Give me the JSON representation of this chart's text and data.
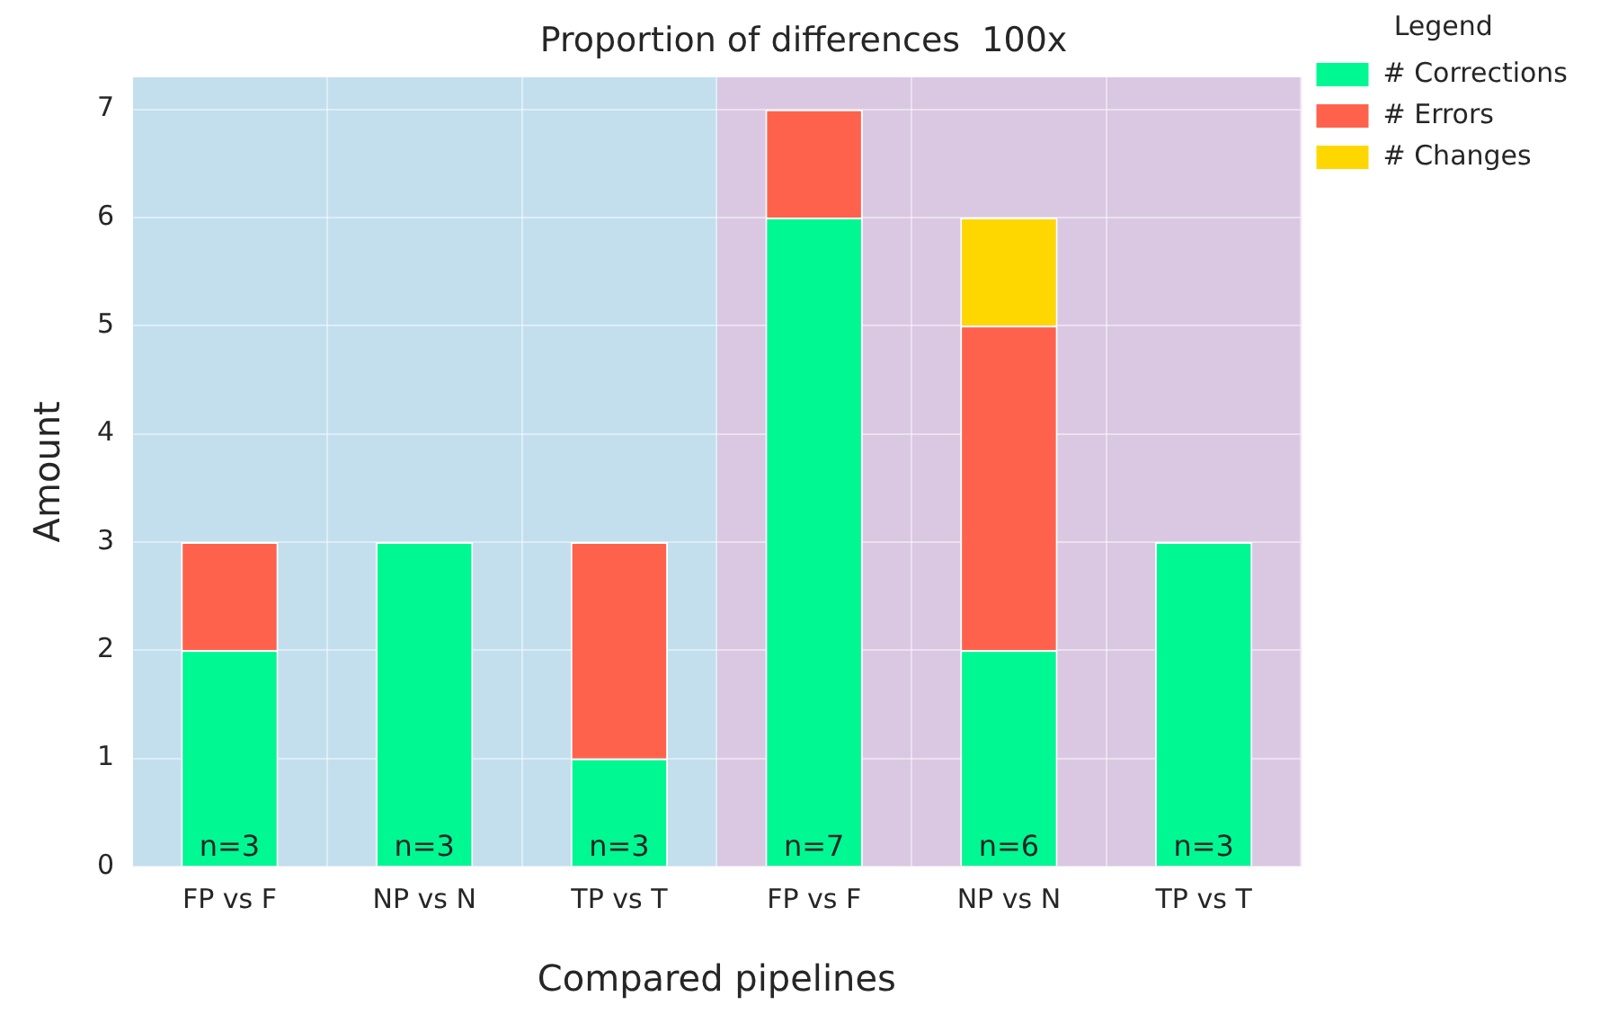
{
  "chart_data": {
    "type": "bar",
    "title": "Proportion of differences  100x",
    "xlabel": "Compared pipelines",
    "ylabel": "Amount",
    "legend_title": "Legend",
    "categories": [
      "FP vs F",
      "NP vs N",
      "TP vs T",
      "FP vs F",
      "NP vs N",
      "TP vs T"
    ],
    "series": [
      {
        "name": "# Corrections",
        "color": "#00f892",
        "values": [
          2,
          3,
          1,
          6,
          2,
          3
        ]
      },
      {
        "name": "# Errors",
        "color": "#ff624c",
        "values": [
          1,
          0,
          2,
          1,
          3,
          0
        ]
      },
      {
        "name": "# Changes",
        "color": "#ffd700",
        "values": [
          0,
          0,
          0,
          0,
          1,
          0
        ]
      }
    ],
    "stacked": true,
    "totals": [
      "n=3",
      "n=3",
      "n=3",
      "n=7",
      "n=6",
      "n=3"
    ],
    "ylim": [
      0,
      7.3
    ],
    "yticks": [
      0,
      1,
      2,
      3,
      4,
      5,
      6,
      7
    ],
    "grid": true,
    "legend": "top right"
  }
}
